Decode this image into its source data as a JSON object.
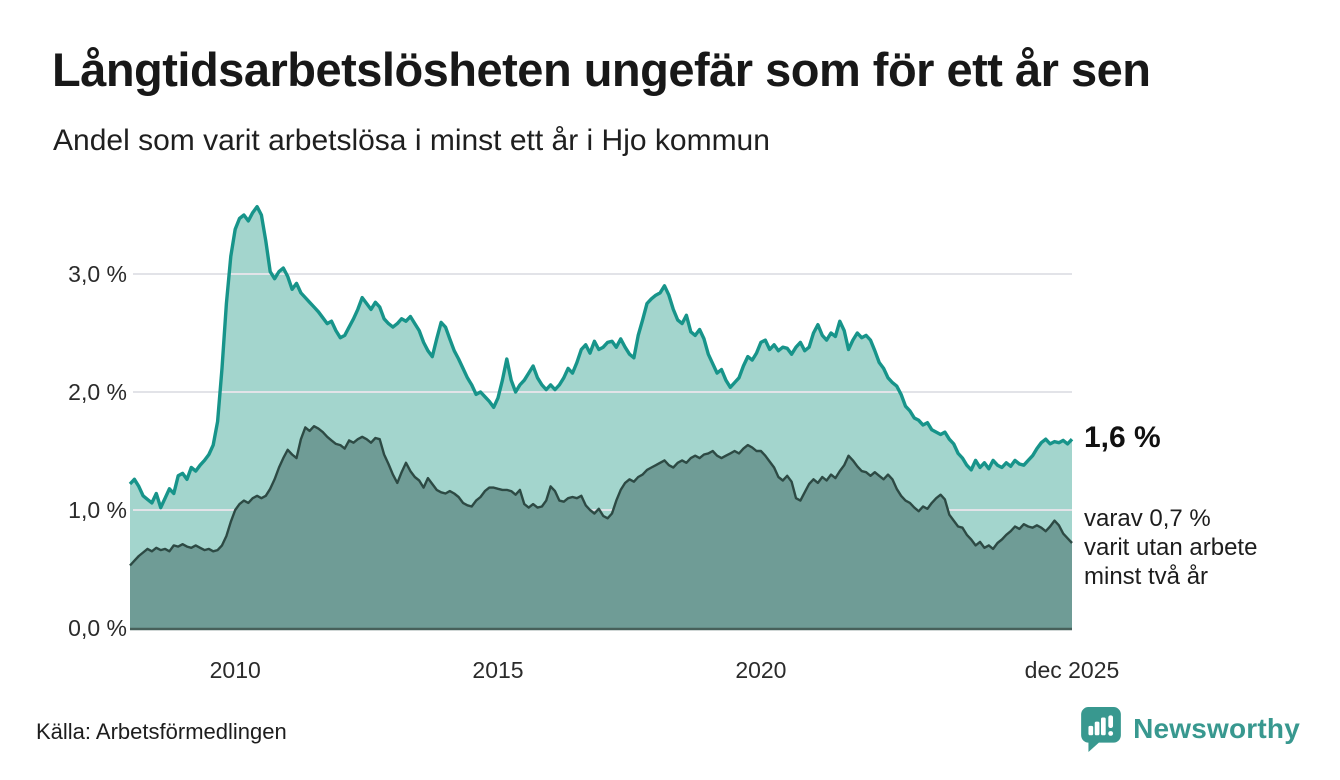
{
  "header": {
    "title": "Långtidsarbetslösheten ungefär som för ett år sen",
    "subtitle": "Andel som varit arbetslösa i minst ett år i Hjo kommun"
  },
  "annotations": {
    "latest_total": "1,6 %",
    "latest_secondary": "varav 0,7 %\nvarit utan arbete\nminst två år"
  },
  "footer": {
    "source": "Källa: Arbetsförmedlingen",
    "brand": "Newsworthy"
  },
  "colors": {
    "series1_line": "#17948a",
    "series1_fill": "#a3d5cd",
    "series2_line": "#2d4a44",
    "series2_fill": "#6f9c96",
    "gridline": "#e2e3e8",
    "axis_line": "#47605a",
    "brand_teal": "#38988f",
    "text_dark": "#181818"
  },
  "chart_data": {
    "type": "area",
    "title": "Långtidsarbetslösheten ungefär som för ett år sen",
    "subtitle": "Andel som varit arbetslösa i minst ett år i Hjo kommun",
    "unit": "%",
    "frequency": "monthly",
    "x_start": "2008-01",
    "x_end": "2025-12",
    "ylim": [
      0,
      3.7
    ],
    "grid": "horizontal",
    "legend_position": "none",
    "y_ticks": [
      {
        "value": 0,
        "label": "0,0 %"
      },
      {
        "value": 1,
        "label": "1,0 %"
      },
      {
        "value": 2,
        "label": "2,0 %"
      },
      {
        "value": 3,
        "label": "3,0 %"
      }
    ],
    "x_ticks": [
      {
        "index": 24,
        "label": "2010"
      },
      {
        "index": 84,
        "label": "2015"
      },
      {
        "index": 144,
        "label": "2020"
      },
      {
        "index": 215,
        "label": "dec 2025"
      }
    ],
    "series": [
      {
        "name": "Andel som varit arbetslösa i minst ett år",
        "color": "#17948a",
        "fill": "#a3d5cd",
        "last_value_label": "1,6 %",
        "values": [
          1.22,
          1.26,
          1.2,
          1.12,
          1.09,
          1.06,
          1.14,
          1.02,
          1.1,
          1.18,
          1.14,
          1.29,
          1.31,
          1.26,
          1.36,
          1.33,
          1.38,
          1.42,
          1.47,
          1.55,
          1.75,
          2.2,
          2.75,
          3.15,
          3.38,
          3.47,
          3.5,
          3.45,
          3.52,
          3.57,
          3.5,
          3.28,
          3.02,
          2.96,
          3.02,
          3.05,
          2.98,
          2.87,
          2.92,
          2.84,
          2.8,
          2.76,
          2.72,
          2.68,
          2.63,
          2.58,
          2.6,
          2.52,
          2.46,
          2.48,
          2.55,
          2.62,
          2.7,
          2.8,
          2.75,
          2.7,
          2.76,
          2.72,
          2.62,
          2.58,
          2.55,
          2.58,
          2.62,
          2.6,
          2.64,
          2.58,
          2.52,
          2.42,
          2.35,
          2.3,
          2.45,
          2.59,
          2.55,
          2.45,
          2.35,
          2.28,
          2.2,
          2.12,
          2.06,
          1.98,
          2.0,
          1.96,
          1.92,
          1.87,
          1.95,
          2.1,
          2.28,
          2.1,
          2.0,
          2.06,
          2.1,
          2.16,
          2.22,
          2.12,
          2.06,
          2.02,
          2.06,
          2.02,
          2.06,
          2.12,
          2.2,
          2.16,
          2.25,
          2.36,
          2.4,
          2.33,
          2.43,
          2.36,
          2.38,
          2.42,
          2.43,
          2.38,
          2.45,
          2.38,
          2.32,
          2.29,
          2.48,
          2.61,
          2.75,
          2.79,
          2.82,
          2.84,
          2.9,
          2.82,
          2.7,
          2.61,
          2.58,
          2.65,
          2.51,
          2.48,
          2.53,
          2.45,
          2.32,
          2.24,
          2.16,
          2.19,
          2.1,
          2.04,
          2.08,
          2.12,
          2.22,
          2.3,
          2.27,
          2.33,
          2.42,
          2.44,
          2.36,
          2.4,
          2.35,
          2.38,
          2.37,
          2.32,
          2.38,
          2.42,
          2.35,
          2.38,
          2.5,
          2.57,
          2.48,
          2.44,
          2.5,
          2.47,
          2.6,
          2.52,
          2.36,
          2.44,
          2.5,
          2.46,
          2.48,
          2.44,
          2.35,
          2.25,
          2.2,
          2.12,
          2.08,
          2.05,
          1.98,
          1.88,
          1.84,
          1.78,
          1.76,
          1.72,
          1.74,
          1.68,
          1.66,
          1.64,
          1.66,
          1.6,
          1.56,
          1.48,
          1.44,
          1.38,
          1.34,
          1.42,
          1.36,
          1.4,
          1.35,
          1.42,
          1.38,
          1.36,
          1.4,
          1.37,
          1.42,
          1.39,
          1.38,
          1.42,
          1.46,
          1.52,
          1.57,
          1.6,
          1.56,
          1.58,
          1.57,
          1.59,
          1.56,
          1.6
        ]
      },
      {
        "name": "varav arbetslösa minst två år",
        "color": "#2d4a44",
        "fill": "#6f9c96",
        "last_value_label": "0,7 %",
        "values": [
          0.53,
          0.57,
          0.61,
          0.64,
          0.67,
          0.65,
          0.68,
          0.66,
          0.67,
          0.65,
          0.7,
          0.69,
          0.71,
          0.69,
          0.68,
          0.7,
          0.68,
          0.66,
          0.67,
          0.65,
          0.66,
          0.7,
          0.78,
          0.9,
          1.0,
          1.05,
          1.08,
          1.06,
          1.1,
          1.12,
          1.1,
          1.12,
          1.18,
          1.26,
          1.36,
          1.44,
          1.51,
          1.47,
          1.44,
          1.6,
          1.7,
          1.67,
          1.71,
          1.69,
          1.66,
          1.62,
          1.59,
          1.56,
          1.55,
          1.52,
          1.59,
          1.57,
          1.6,
          1.62,
          1.6,
          1.57,
          1.61,
          1.6,
          1.47,
          1.39,
          1.3,
          1.23,
          1.32,
          1.4,
          1.33,
          1.28,
          1.25,
          1.19,
          1.27,
          1.22,
          1.17,
          1.15,
          1.14,
          1.16,
          1.14,
          1.11,
          1.06,
          1.04,
          1.03,
          1.08,
          1.11,
          1.16,
          1.19,
          1.19,
          1.18,
          1.17,
          1.17,
          1.16,
          1.13,
          1.17,
          1.05,
          1.02,
          1.05,
          1.02,
          1.03,
          1.08,
          1.2,
          1.16,
          1.08,
          1.07,
          1.1,
          1.11,
          1.1,
          1.12,
          1.04,
          1.0,
          0.97,
          1.01,
          0.95,
          0.93,
          0.97,
          1.08,
          1.17,
          1.23,
          1.26,
          1.24,
          1.28,
          1.3,
          1.34,
          1.36,
          1.38,
          1.4,
          1.42,
          1.38,
          1.36,
          1.4,
          1.42,
          1.4,
          1.44,
          1.46,
          1.44,
          1.47,
          1.48,
          1.5,
          1.46,
          1.44,
          1.46,
          1.48,
          1.5,
          1.48,
          1.52,
          1.55,
          1.53,
          1.5,
          1.5,
          1.46,
          1.41,
          1.36,
          1.28,
          1.25,
          1.29,
          1.24,
          1.1,
          1.08,
          1.15,
          1.22,
          1.26,
          1.23,
          1.28,
          1.25,
          1.3,
          1.27,
          1.33,
          1.38,
          1.46,
          1.42,
          1.37,
          1.33,
          1.32,
          1.29,
          1.32,
          1.29,
          1.26,
          1.3,
          1.26,
          1.18,
          1.12,
          1.08,
          1.06,
          1.02,
          0.99,
          1.03,
          1.01,
          1.06,
          1.1,
          1.13,
          1.09,
          0.96,
          0.91,
          0.86,
          0.85,
          0.79,
          0.75,
          0.7,
          0.73,
          0.68,
          0.7,
          0.67,
          0.72,
          0.75,
          0.79,
          0.82,
          0.86,
          0.84,
          0.88,
          0.86,
          0.85,
          0.87,
          0.85,
          0.82,
          0.86,
          0.91,
          0.87,
          0.8,
          0.76,
          0.72
        ]
      }
    ]
  }
}
